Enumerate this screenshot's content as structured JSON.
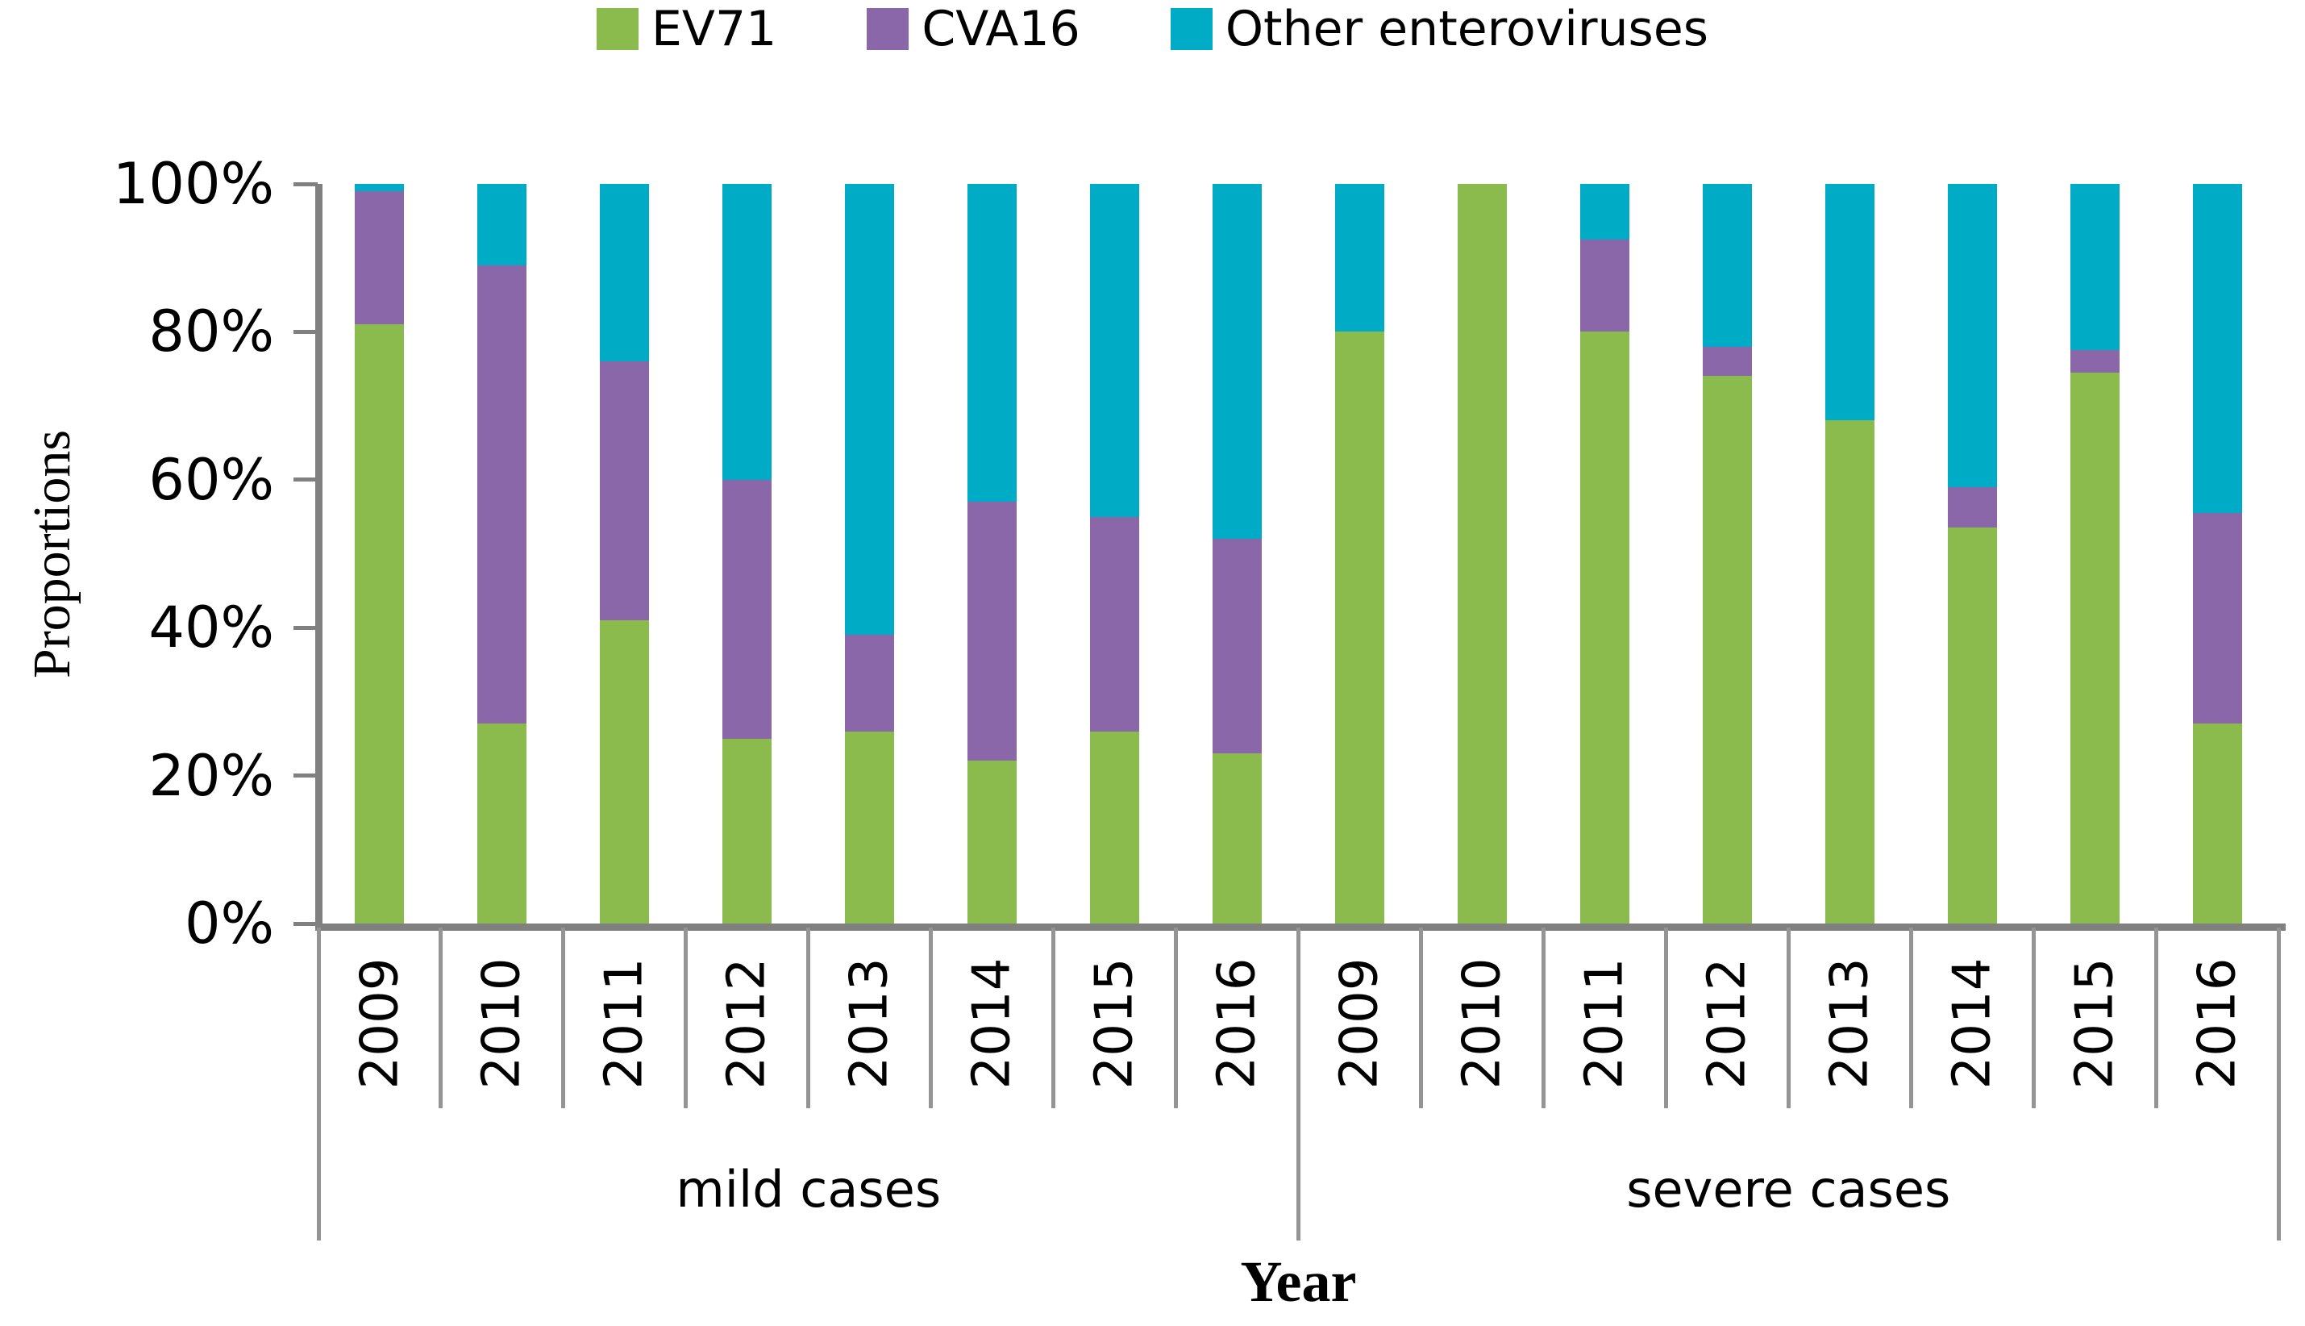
{
  "legend": {
    "items": [
      {
        "label": "EV71",
        "color": "#8CBB4D"
      },
      {
        "label": "CVA16",
        "color": "#8967A8"
      },
      {
        "label": "Other enteroviruses",
        "color": "#00ACC5"
      }
    ]
  },
  "axes": {
    "y_title": "Proportions",
    "x_title": "Year",
    "y_tick_labels": [
      "100%",
      "80%",
      "60%",
      "40%",
      "20%",
      "0%"
    ],
    "axis_color": "#808080",
    "separator_color": "#949494"
  },
  "chart_data": {
    "type": "bar",
    "variant": "stacked-percent",
    "title": "",
    "xlabel": "Year",
    "ylabel": "Proportions",
    "ylim": [
      0,
      100
    ],
    "y_ticks_percent": [
      100,
      80,
      60,
      40,
      20,
      0
    ],
    "grid": false,
    "legend_position": "top",
    "groups": [
      {
        "label": "mild cases",
        "categories": [
          "2009",
          "2010",
          "2011",
          "2012",
          "2013",
          "2014",
          "2015",
          "2016"
        ]
      },
      {
        "label": "severe cases",
        "categories": [
          "2009",
          "2010",
          "2011",
          "2012",
          "2013",
          "2014",
          "2015",
          "2016"
        ]
      }
    ],
    "series": [
      {
        "name": "EV71",
        "color": "#8CBB4D",
        "values": [
          81,
          27,
          41,
          25,
          26,
          22,
          26,
          23,
          80,
          100,
          80,
          74,
          68,
          53.5,
          74.5,
          27
        ]
      },
      {
        "name": "CVA16",
        "color": "#8967A8",
        "values": [
          18,
          62,
          35,
          35,
          13,
          35,
          29,
          29,
          0,
          0,
          12.5,
          4,
          0,
          5.5,
          3,
          28.5
        ]
      },
      {
        "name": "Other enteroviruses",
        "color": "#00ACC5",
        "values": [
          1,
          11,
          24,
          40,
          61,
          43,
          45,
          48,
          20,
          0,
          7.5,
          22,
          32,
          41,
          22.5,
          44.5
        ]
      }
    ]
  }
}
